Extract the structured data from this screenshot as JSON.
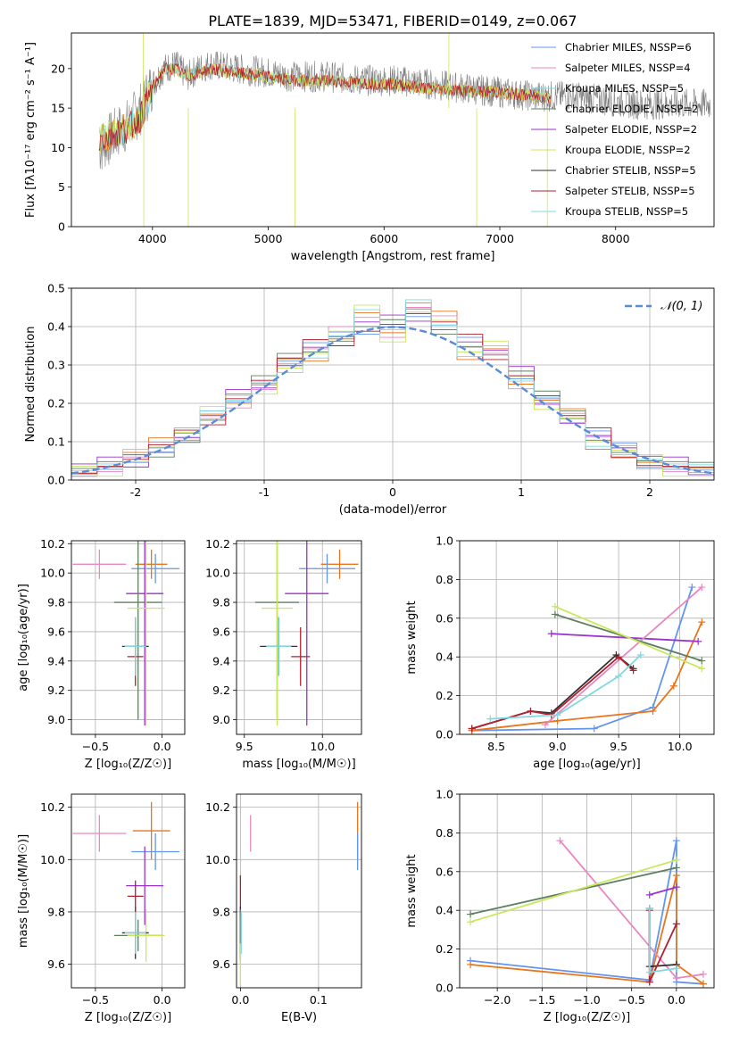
{
  "figure": {
    "title": "PLATE=1839, MJD=53471, FIBERID=0149, z=0.067"
  },
  "colors": {
    "cornflower": "#6495ed",
    "orange": "#e8761e",
    "purple": "#9a32cd",
    "pink": "#e887c0",
    "darkgreen": "#5f8060",
    "yellowgreen": "#c8e85a",
    "darkred": "#b22030",
    "black": "#303030",
    "lightcyan": "#80d8e0",
    "gray": "#808080"
  },
  "chart_data": [
    {
      "id": "spectrum",
      "type": "line",
      "xlabel": "wavelength [Angstrom, rest frame]",
      "ylabel": "Flux [fλ10⁻¹⁷ erg cm⁻² s⁻¹ A⁻¹]",
      "xlim": [
        3300,
        8850
      ],
      "ylim": [
        0,
        24.5
      ],
      "xticks": [
        4000,
        5000,
        6000,
        7000,
        8000
      ],
      "yticks": [
        0,
        5,
        10,
        15,
        20
      ],
      "legend_position": "top-right",
      "legend": [
        {
          "label": "Chabrier MILES, NSSP=6",
          "color": "#6495ed"
        },
        {
          "label": "Salpeter MILES, NSSP=4",
          "color": "#e887c0"
        },
        {
          "label": "Kroupa MILES, NSSP=5",
          "color": "#80d8e0"
        },
        {
          "label": "Chabrier ELODIE, NSSP=2",
          "color": "#5f8060"
        },
        {
          "label": "Salpeter ELODIE, NSSP=2",
          "color": "#9a32cd"
        },
        {
          "label": "Kroupa ELODIE, NSSP=2",
          "color": "#c8e85a"
        },
        {
          "label": "Chabrier STELIB, NSSP=5",
          "color": "#303030"
        },
        {
          "label": "Salpeter STELIB, NSSP=5",
          "color": "#b22030"
        },
        {
          "label": "Kroupa STELIB, NSSP=5",
          "color": "#80d8e0"
        }
      ],
      "data_wavelength": [
        3550,
        3700,
        3800,
        3900,
        4000,
        4100,
        4200,
        4300,
        4400,
        4500,
        4700,
        5000,
        5200,
        5500,
        5800,
        6100,
        6400,
        6700,
        7000,
        7300,
        7600,
        7900,
        8200,
        8500
      ],
      "data_flux": [
        10,
        12,
        13,
        15,
        18,
        20,
        20.5,
        19,
        20,
        20.5,
        20,
        19.5,
        19,
        19,
        18.5,
        18.5,
        18,
        17.5,
        17,
        16.5,
        16.5,
        16,
        15.5,
        15.5
      ],
      "model_flux": [
        11,
        12,
        12.5,
        14,
        17.5,
        20,
        20,
        19,
        19.5,
        20,
        19.5,
        19,
        18.5,
        18.5,
        18.2,
        18,
        17.5,
        17.2,
        17,
        16.5,
        16.2,
        16,
        15.5,
        15.5
      ]
    },
    {
      "id": "residuals",
      "type": "line",
      "xlabel": "(data-model)/error",
      "ylabel": "Normed distribution",
      "xlim": [
        -2.5,
        2.5
      ],
      "ylim": [
        0,
        0.5
      ],
      "xticks": [
        -2,
        -1,
        0,
        1,
        2
      ],
      "yticks": [
        0.0,
        0.1,
        0.2,
        0.3,
        0.4,
        0.5
      ],
      "legend_position": "top-right",
      "legend_label": "𝒩(0, 1)",
      "bin_centers": [
        -2.4,
        -2.2,
        -2.0,
        -1.8,
        -1.6,
        -1.4,
        -1.2,
        -1.0,
        -0.8,
        -0.6,
        -0.4,
        -0.2,
        0.0,
        0.2,
        0.4,
        0.6,
        0.8,
        1.0,
        1.2,
        1.4,
        1.6,
        1.8,
        2.0,
        2.2,
        2.4
      ],
      "hist_a": [
        0.03,
        0.04,
        0.05,
        0.08,
        0.11,
        0.16,
        0.22,
        0.26,
        0.31,
        0.35,
        0.37,
        0.4,
        0.41,
        0.43,
        0.4,
        0.36,
        0.33,
        0.28,
        0.22,
        0.16,
        0.12,
        0.08,
        0.05,
        0.04,
        0.03
      ],
      "hist_b": [
        0.02,
        0.03,
        0.06,
        0.09,
        0.12,
        0.18,
        0.2,
        0.24,
        0.3,
        0.33,
        0.38,
        0.44,
        0.38,
        0.45,
        0.42,
        0.33,
        0.35,
        0.25,
        0.2,
        0.17,
        0.1,
        0.07,
        0.05,
        0.03,
        0.02
      ]
    },
    {
      "id": "age_vs_z",
      "type": "scatter",
      "xlabel": "Z [log₁₀(Z/Z☉)]",
      "ylabel": "age  [log₁₀(age/yr)]",
      "xlim": [
        -0.68,
        0.17
      ],
      "ylim": [
        8.9,
        10.22
      ],
      "xticks": [
        -0.5,
        0.0
      ],
      "yticks": [
        9.0,
        9.2,
        9.4,
        9.6,
        9.8,
        10.0,
        10.2
      ],
      "points": [
        {
          "x": -0.47,
          "y": 10.06,
          "xerr": 0.2,
          "yerr": 0.1,
          "color": "#e887c0"
        },
        {
          "x": -0.08,
          "y": 10.06,
          "xerr": 0.12,
          "yerr": 0.1,
          "color": "#e8761e"
        },
        {
          "x": -0.05,
          "y": 10.03,
          "xerr": 0.18,
          "yerr": 0.1,
          "color": "#6495ed"
        },
        {
          "x": -0.13,
          "y": 9.86,
          "xerr": 0.14,
          "yerr": 0.9,
          "color": "#9a32cd"
        },
        {
          "x": -0.18,
          "y": 9.8,
          "xerr": 0.18,
          "yerr": 0.8,
          "color": "#5f8060"
        },
        {
          "x": -0.12,
          "y": 9.76,
          "xerr": 0.14,
          "yerr": 0.8,
          "color": "#c8e85a"
        },
        {
          "x": -0.2,
          "y": 9.5,
          "xerr": 0.1,
          "yerr": 0.2,
          "color": "#303030"
        },
        {
          "x": -0.2,
          "y": 9.43,
          "xerr": 0.06,
          "yerr": 0.2,
          "color": "#b22030"
        },
        {
          "x": -0.2,
          "y": 9.5,
          "xerr": 0.08,
          "yerr": 0.2,
          "color": "#80d8e0"
        }
      ]
    },
    {
      "id": "age_vs_mass",
      "type": "scatter",
      "xlabel": "mass [log₁₀(M/M☉)]",
      "ylabel": "",
      "xlim": [
        9.45,
        10.25
      ],
      "ylim": [
        8.9,
        10.22
      ],
      "xticks": [
        9.5,
        10.0
      ],
      "yticks": [
        9.0,
        9.2,
        9.4,
        9.6,
        9.8,
        10.0,
        10.2
      ],
      "points": [
        {
          "x": 10.11,
          "y": 10.06,
          "xerr": 0.12,
          "yerr": 0.1,
          "color": "#e8761e"
        },
        {
          "x": 10.03,
          "y": 10.03,
          "xerr": 0.18,
          "yerr": 0.1,
          "color": "#6495ed"
        },
        {
          "x": 9.9,
          "y": 9.86,
          "xerr": 0.14,
          "yerr": 0.9,
          "color": "#9a32cd"
        },
        {
          "x": 9.71,
          "y": 9.8,
          "xerr": 0.14,
          "yerr": 0.8,
          "color": "#5f8060"
        },
        {
          "x": 9.71,
          "y": 9.76,
          "xerr": 0.1,
          "yerr": 0.8,
          "color": "#c8e85a"
        },
        {
          "x": 9.72,
          "y": 9.5,
          "xerr": 0.12,
          "yerr": 0.2,
          "color": "#303030"
        },
        {
          "x": 9.86,
          "y": 9.43,
          "xerr": 0.06,
          "yerr": 0.2,
          "color": "#b22030"
        },
        {
          "x": 9.72,
          "y": 9.5,
          "xerr": 0.08,
          "yerr": 0.2,
          "color": "#80d8e0"
        }
      ]
    },
    {
      "id": "weight_vs_age",
      "type": "line",
      "xlabel": "age  [log₁₀(age/yr)]",
      "ylabel": "mass weight",
      "xlim": [
        8.2,
        10.28
      ],
      "ylim": [
        0,
        1.0
      ],
      "xticks": [
        8.5,
        9.0,
        9.5,
        10.0
      ],
      "yticks": [
        0.0,
        0.2,
        0.4,
        0.6,
        0.8,
        1.0
      ],
      "series": [
        {
          "color": "#6495ed",
          "x": [
            8.3,
            9.3,
            9.78,
            10.1
          ],
          "y": [
            0.02,
            0.03,
            0.14,
            0.76
          ]
        },
        {
          "color": "#e8761e",
          "x": [
            8.3,
            9.0,
            9.78,
            9.95,
            10.18
          ],
          "y": [
            0.02,
            0.07,
            0.12,
            0.25,
            0.58
          ]
        },
        {
          "color": "#9a32cd",
          "x": [
            8.95,
            10.15
          ],
          "y": [
            0.52,
            0.48
          ]
        },
        {
          "color": "#e887c0",
          "x": [
            8.9,
            10.18
          ],
          "y": [
            0.05,
            0.76
          ]
        },
        {
          "color": "#5f8060",
          "x": [
            8.98,
            10.18
          ],
          "y": [
            0.62,
            0.38
          ]
        },
        {
          "color": "#c8e85a",
          "x": [
            8.98,
            10.18
          ],
          "y": [
            0.66,
            0.34
          ]
        },
        {
          "color": "#303030",
          "x": [
            8.3,
            8.78,
            8.95,
            9.48,
            9.62
          ],
          "y": [
            0.03,
            0.12,
            0.11,
            0.41,
            0.34
          ]
        },
        {
          "color": "#b22030",
          "x": [
            8.3,
            8.78,
            8.95,
            9.5,
            9.62
          ],
          "y": [
            0.03,
            0.12,
            0.1,
            0.4,
            0.33
          ]
        },
        {
          "color": "#80d8e0",
          "x": [
            8.45,
            9.0,
            9.5,
            9.68
          ],
          "y": [
            0.08,
            0.1,
            0.3,
            0.41
          ]
        }
      ]
    },
    {
      "id": "mass_vs_z",
      "type": "scatter",
      "xlabel": "Z [log₁₀(Z/Z☉)]",
      "ylabel": "mass [log₁₀(M/M☉)]",
      "xlim": [
        -0.68,
        0.17
      ],
      "ylim": [
        9.51,
        10.25
      ],
      "xticks": [
        -0.5,
        0.0
      ],
      "yticks": [
        9.6,
        9.8,
        10.0,
        10.2
      ],
      "points": [
        {
          "x": -0.47,
          "y": 10.1,
          "xerr": 0.2,
          "yerr": 0.07,
          "color": "#e887c0"
        },
        {
          "x": -0.08,
          "y": 10.11,
          "xerr": 0.14,
          "yerr": 0.11,
          "color": "#e8761e"
        },
        {
          "x": -0.05,
          "y": 10.03,
          "xerr": 0.18,
          "yerr": 0.07,
          "color": "#6495ed"
        },
        {
          "x": -0.13,
          "y": 9.9,
          "xerr": 0.14,
          "yerr": 0.15,
          "color": "#9a32cd"
        },
        {
          "x": -0.18,
          "y": 9.71,
          "xerr": 0.18,
          "yerr": 0.06,
          "color": "#5f8060"
        },
        {
          "x": -0.12,
          "y": 9.71,
          "xerr": 0.14,
          "yerr": 0.1,
          "color": "#c8e85a"
        },
        {
          "x": -0.2,
          "y": 9.72,
          "xerr": 0.1,
          "yerr": 0.1,
          "color": "#303030"
        },
        {
          "x": -0.2,
          "y": 9.86,
          "xerr": 0.06,
          "yerr": 0.06,
          "color": "#b22030"
        },
        {
          "x": -0.2,
          "y": 9.72,
          "xerr": 0.08,
          "yerr": 0.08,
          "color": "#80d8e0"
        }
      ]
    },
    {
      "id": "mass_vs_ebv",
      "type": "scatter",
      "xlabel": "E(B-V)",
      "ylabel": "",
      "xlim": [
        -0.005,
        0.155
      ],
      "ylim": [
        9.51,
        10.25
      ],
      "xticks": [
        0.0,
        0.1
      ],
      "yticks": [
        9.6,
        9.8,
        10.0,
        10.2
      ],
      "points": [
        {
          "x": 0.013,
          "y": 10.1,
          "yerr": 0.07,
          "color": "#e887c0"
        },
        {
          "x": 0.15,
          "y": 10.11,
          "yerr": 0.11,
          "color": "#e8761e"
        },
        {
          "x": 0.15,
          "y": 10.03,
          "yerr": 0.07,
          "color": "#6495ed"
        },
        {
          "x": 0.0,
          "y": 9.86,
          "yerr": 0.08,
          "color": "#b22030"
        },
        {
          "x": 0.0,
          "y": 9.72,
          "yerr": 0.1,
          "color": "#303030"
        },
        {
          "x": 0.0,
          "y": 9.71,
          "yerr": 0.1,
          "color": "#5f8060"
        },
        {
          "x": 0.0,
          "y": 9.6,
          "yerr": 0.08,
          "color": "#c8e85a"
        },
        {
          "x": 0.001,
          "y": 9.72,
          "yerr": 0.08,
          "color": "#80d8e0"
        }
      ]
    },
    {
      "id": "weight_vs_z",
      "type": "line",
      "xlabel": "Z [log₁₀(Z/Z☉)]",
      "ylabel": "mass weight",
      "xlim": [
        -2.42,
        0.42
      ],
      "ylim": [
        0,
        1.0
      ],
      "xticks": [
        -2.0,
        -1.5,
        -1.0,
        -0.5,
        0.0
      ],
      "yticks": [
        0.0,
        0.2,
        0.4,
        0.6,
        0.8,
        1.0
      ],
      "series": [
        {
          "color": "#6495ed",
          "x": [
            -2.3,
            -0.3,
            0.0,
            0.0,
            0.3
          ],
          "y": [
            0.14,
            0.04,
            0.76,
            0.03,
            0.02
          ]
        },
        {
          "color": "#e8761e",
          "x": [
            -2.3,
            -0.3,
            0.0,
            0.0,
            0.3
          ],
          "y": [
            0.12,
            0.03,
            0.58,
            0.12,
            0.02
          ]
        },
        {
          "color": "#9a32cd",
          "x": [
            -0.3,
            0.0
          ],
          "y": [
            0.48,
            0.52
          ]
        },
        {
          "color": "#e887c0",
          "x": [
            -1.3,
            0.0,
            0.3
          ],
          "y": [
            0.76,
            0.05,
            0.07
          ]
        },
        {
          "color": "#5f8060",
          "x": [
            -2.3,
            0.0
          ],
          "y": [
            0.38,
            0.62
          ]
        },
        {
          "color": "#c8e85a",
          "x": [
            -2.3,
            0.0
          ],
          "y": [
            0.34,
            0.66
          ]
        },
        {
          "color": "#303030",
          "x": [
            -0.3,
            -0.3,
            0.0
          ],
          "y": [
            0.41,
            0.11,
            0.12
          ]
        },
        {
          "color": "#b22030",
          "x": [
            -0.3,
            -0.3,
            0.0
          ],
          "y": [
            0.4,
            0.03,
            0.33
          ]
        },
        {
          "color": "#80d8e0",
          "x": [
            -0.3,
            -0.3,
            0.0
          ],
          "y": [
            0.41,
            0.08,
            0.1
          ]
        }
      ]
    }
  ]
}
